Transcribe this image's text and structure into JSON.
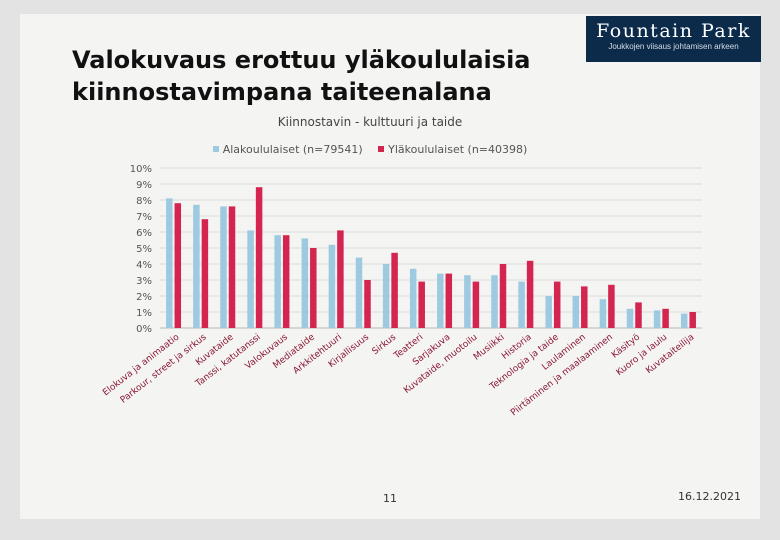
{
  "slide": {
    "title_line1": "Valokuvaus erottuu yläkoululaisia",
    "title_line2": "kiinnostavimpana taiteenalana",
    "logo_name": "Fountain Park",
    "logo_tagline": "Joukkojen viisaus johtamisen arkeen",
    "page_number": "11",
    "date": "16.12.2021"
  },
  "colors": {
    "series_a": "#9ecae1",
    "series_b": "#d42550"
  },
  "chart_data": {
    "type": "bar",
    "title": "Kiinnostavin - kulttuuri ja taide",
    "categories": [
      "Elokuva ja animaatio",
      "Parkour, street ja sirkus",
      "Kuvataide",
      "Tanssi, katutanssi",
      "Valokuvaus",
      "Mediataide",
      "Arkkitehtuuri",
      "Kirjallisuus",
      "Sirkus",
      "Teatteri",
      "Sarjakuva",
      "Kuvataide, muotoilu",
      "Musiikki",
      "Historia",
      "Teknologia ja taide",
      "Laulaminen",
      "Piirtäminen ja maalaaminen",
      "Käsityö",
      "Kuoro ja laulu",
      "Kuvataiteilija"
    ],
    "series": [
      {
        "name": "Alakoululaiset (n=79541)",
        "values": [
          8.1,
          7.7,
          7.6,
          6.1,
          5.8,
          5.6,
          5.2,
          4.4,
          4.0,
          3.7,
          3.4,
          3.3,
          3.3,
          2.9,
          2.0,
          2.0,
          1.8,
          1.2,
          1.1,
          0.9
        ]
      },
      {
        "name": "Yläkoululaiset (n=40398)",
        "values": [
          7.8,
          6.8,
          7.6,
          8.8,
          5.8,
          5.0,
          6.1,
          3.0,
          4.7,
          2.9,
          3.4,
          2.9,
          4.0,
          4.2,
          2.9,
          2.6,
          2.7,
          1.6,
          1.2,
          1.0
        ]
      }
    ],
    "xlabel": "",
    "ylabel": "",
    "ylim": [
      0,
      10
    ],
    "yticks": [
      "0%",
      "1%",
      "2%",
      "3%",
      "4%",
      "5%",
      "6%",
      "7%",
      "8%",
      "9%",
      "10%"
    ],
    "grid": true,
    "legend": "top-center"
  }
}
